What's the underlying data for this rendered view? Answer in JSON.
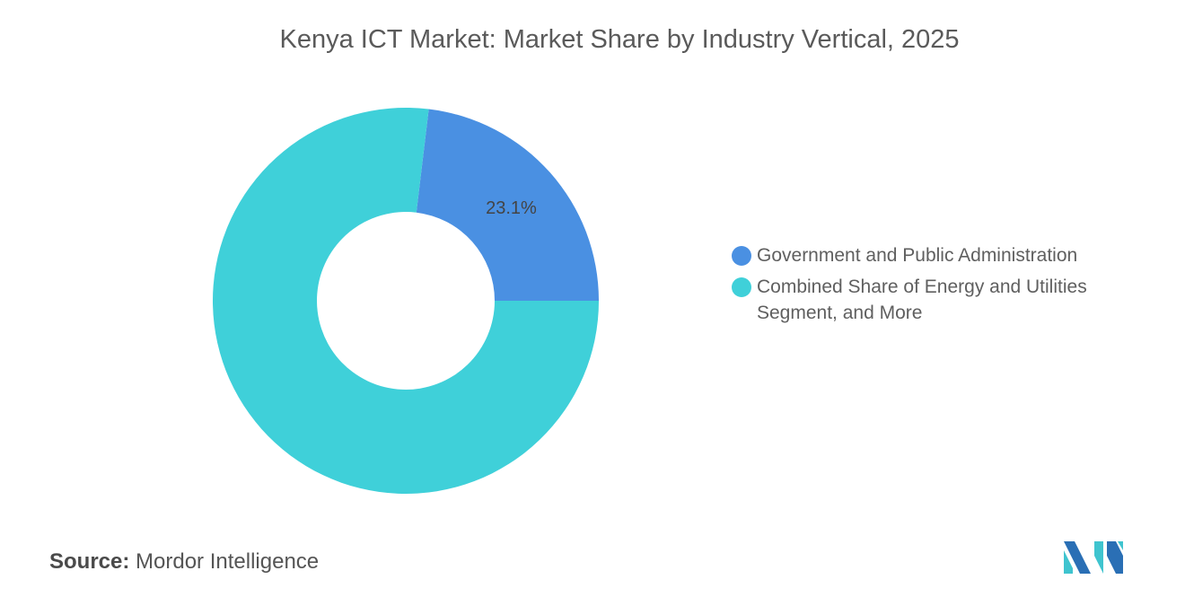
{
  "chart_data": {
    "type": "pie",
    "subtype": "donut",
    "title": "Kenya ICT Market: Market Share by Industry Vertical, 2025",
    "categories": [
      "Government and Public Administration",
      "Combined Share of Energy and Utilities Segment, and More"
    ],
    "values": [
      23.1,
      76.9
    ],
    "data_labels": [
      "23.1%",
      ""
    ],
    "colors": [
      "#4a90e2",
      "#3fd0d9"
    ],
    "legend_position": "right"
  },
  "source": {
    "label": "Source:",
    "value": "Mordor Intelligence"
  },
  "logo": {
    "text": "Mordor Intelligence"
  }
}
